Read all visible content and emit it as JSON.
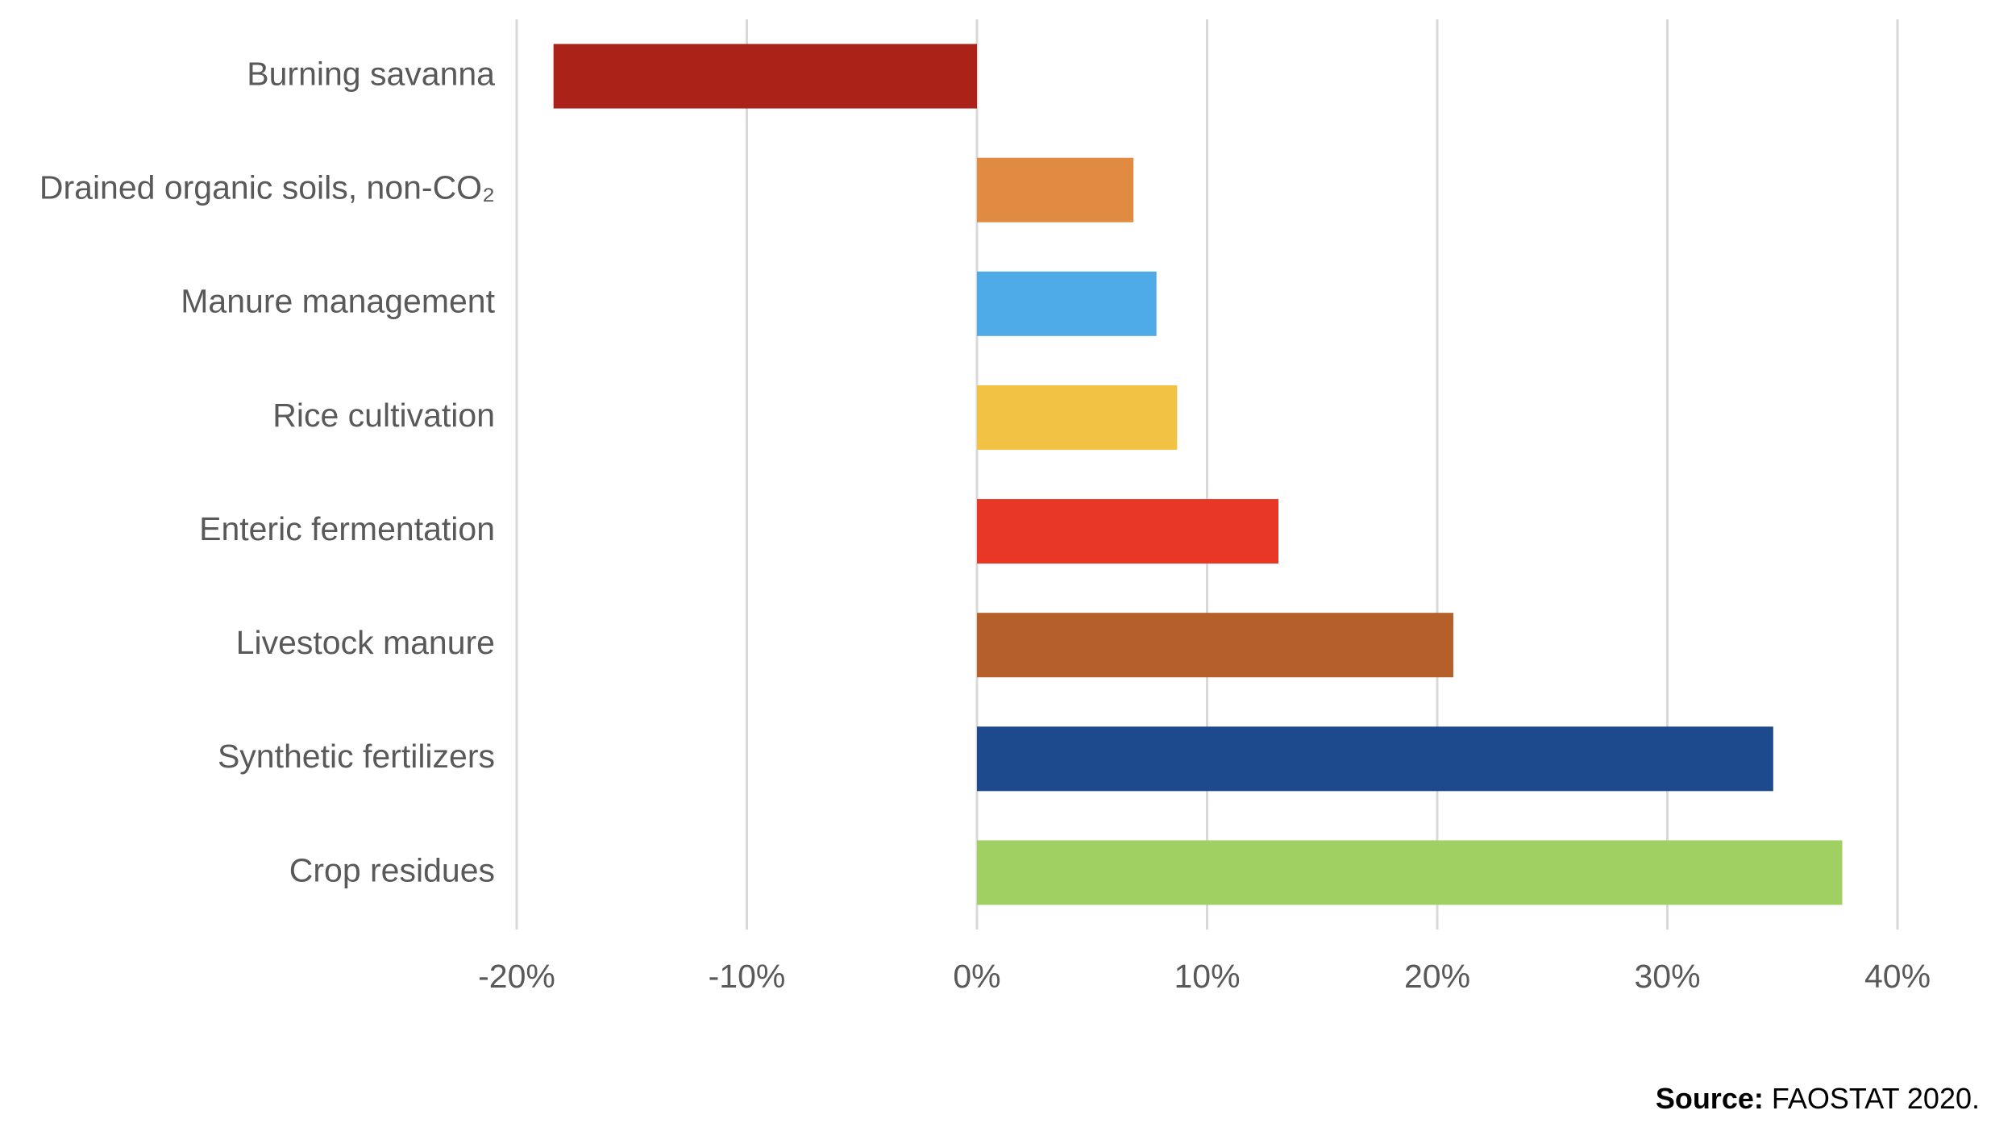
{
  "chart_data": {
    "type": "hbar",
    "categories": [
      "Burning savanna",
      "Drained organic soils, non-CO₂",
      "Manure management",
      "Rice cultivation",
      "Enteric fermentation",
      "Livestock manure",
      "Synthetic fertilizers",
      "Crop residues"
    ],
    "values": [
      -18.4,
      6.8,
      7.8,
      8.7,
      13.1,
      20.7,
      34.6,
      37.6
    ],
    "colors": [
      "#ab2219",
      "#e08a42",
      "#4fabe8",
      "#f2c244",
      "#e83726",
      "#b5602b",
      "#1d4a8c",
      "#a0d062"
    ],
    "xlim": [
      -20,
      40
    ],
    "xticks": [
      {
        "value": -20,
        "label": "-20%"
      },
      {
        "value": -10,
        "label": "-10%"
      },
      {
        "value": 0,
        "label": "0%"
      },
      {
        "value": 10,
        "label": "10%"
      },
      {
        "value": 20,
        "label": "20%"
      },
      {
        "value": 30,
        "label": "30%"
      },
      {
        "value": 40,
        "label": "40%"
      }
    ],
    "grid": true,
    "source": {
      "label": "Source:",
      "text": "FAOSTAT 2020."
    }
  }
}
